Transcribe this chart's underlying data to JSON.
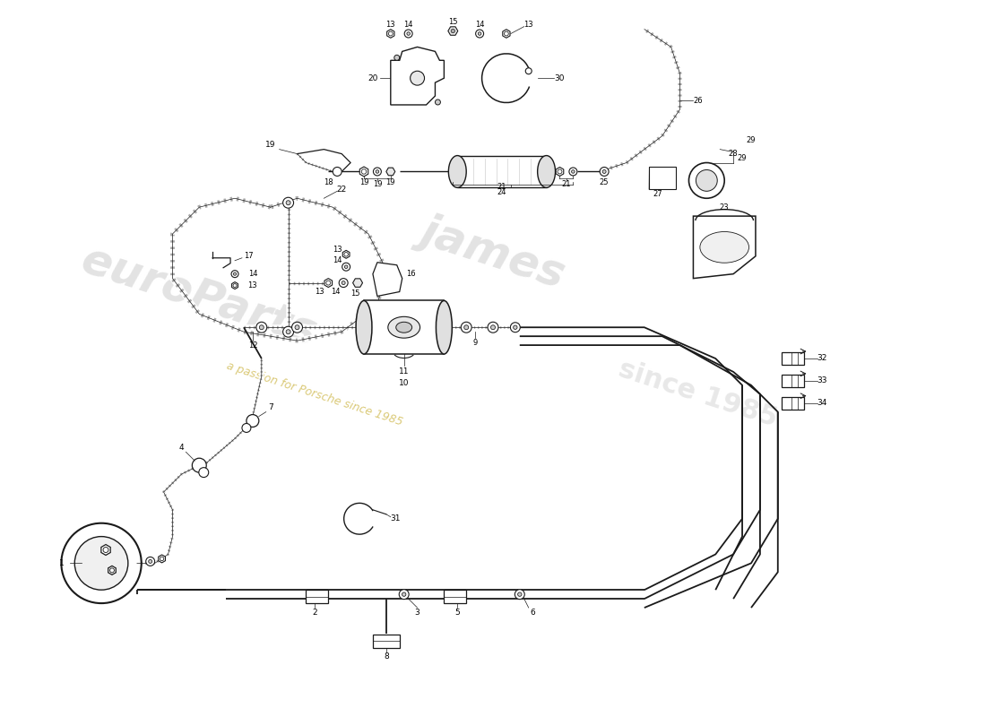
{
  "bg_color": "#ffffff",
  "line_color": "#1a1a1a",
  "watermark1": "euroParts",
  "watermark2": "a passion for Porsche since 1985",
  "wm_color1": "#cccccc",
  "wm_color2": "#d4c060",
  "fig_w": 11.0,
  "fig_h": 8.0,
  "dpi": 100,
  "parts": {
    "top_bracket_label": "20",
    "clamp_label": "30",
    "top_nuts_labels": [
      "13",
      "14",
      "15",
      "14",
      "13"
    ],
    "filter_labels": [
      "18",
      "19",
      "19",
      "21",
      "21",
      "24",
      "25"
    ],
    "hose_labels": [
      "22",
      "26",
      "27",
      "28",
      "29",
      "23"
    ],
    "pump_labels": [
      "9",
      "10",
      "11",
      "12",
      "13",
      "13",
      "14",
      "14",
      "15",
      "16"
    ],
    "bottom_labels": [
      "1",
      "2",
      "3",
      "4",
      "5",
      "6",
      "7",
      "8",
      "31",
      "32",
      "33",
      "34"
    ]
  }
}
